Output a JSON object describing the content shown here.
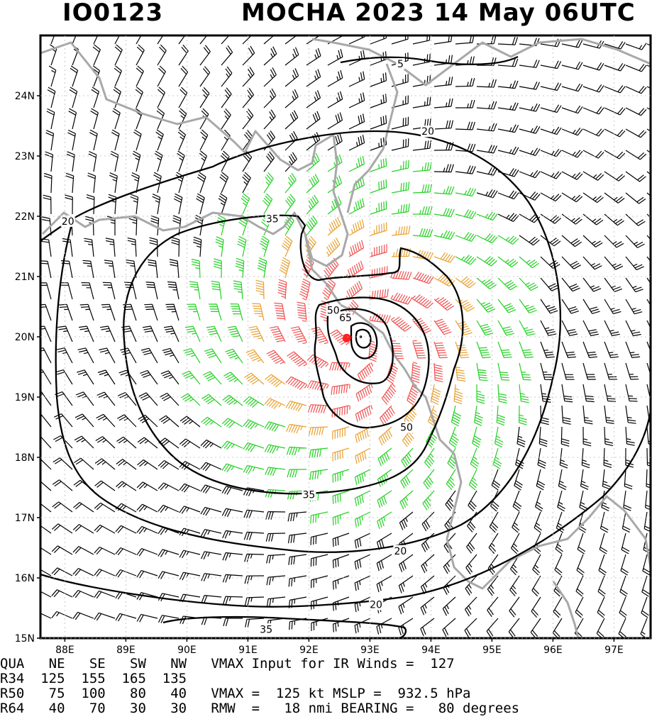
{
  "header": {
    "storm_id": "IO0123",
    "storm_title": "MOCHA 2023 14 May 06UTC"
  },
  "map": {
    "lon_range": [
      87.6,
      97.6
    ],
    "lat_range": [
      15.0,
      25.0
    ],
    "lat_labels": [
      "15N",
      "16N",
      "17N",
      "18N",
      "19N",
      "20N",
      "21N",
      "22N",
      "23N",
      "24N"
    ],
    "lon_labels": [
      "88E",
      "89E",
      "90E",
      "91E",
      "92E",
      "93E",
      "94E",
      "95E",
      "96E",
      "97E"
    ],
    "storm_center": {
      "lon": 92.85,
      "lat": 20.0
    },
    "analysis_center": {
      "lon": 92.62,
      "lat": 19.98
    },
    "contour_labels": [
      {
        "text": "5",
        "lon": 93.5,
        "lat": 24.53
      },
      {
        "text": "20",
        "lon": 93.95,
        "lat": 23.41
      },
      {
        "text": "20",
        "lon": 88.05,
        "lat": 21.92
      },
      {
        "text": "35",
        "lon": 91.4,
        "lat": 21.96
      },
      {
        "text": "50",
        "lon": 92.4,
        "lat": 20.44
      },
      {
        "text": "65",
        "lon": 92.6,
        "lat": 20.32
      },
      {
        "text": "50",
        "lon": 93.6,
        "lat": 18.5
      },
      {
        "text": "35",
        "lon": 92.0,
        "lat": 17.38
      },
      {
        "text": "20",
        "lon": 93.5,
        "lat": 16.45
      },
      {
        "text": "20",
        "lon": 93.1,
        "lat": 15.56
      },
      {
        "text": "35",
        "lon": 91.3,
        "lat": 15.15
      }
    ],
    "colors": {
      "coast": "#a8a8a8",
      "wind_lt34": "#000000",
      "wind_34": "#22d022",
      "wind_50": "#e8a030",
      "wind_64": "#f05050",
      "center": "#ff2020"
    }
  },
  "info": {
    "row1": "QUA   NE   SE   SW   NW   VMAX Input for IR Winds =  127",
    "row2": "R34  125  155  165  135",
    "row3": "R50   75  100   80   40   VMAX =  125 kt MSLP =  932.5 hPa",
    "row4": "R64   40   70   30   30   RMW  =   18 nmi BEARING =   80 degrees"
  }
}
